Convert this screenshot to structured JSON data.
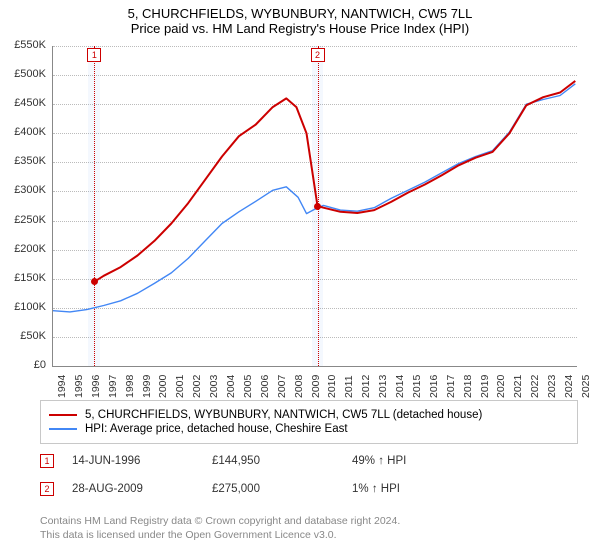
{
  "title": "5, CHURCHFIELDS, WYBUNBURY, NANTWICH, CW5 7LL",
  "subtitle": "Price paid vs. HM Land Registry's House Price Index (HPI)",
  "chart": {
    "type": "line",
    "ylim": [
      0,
      550000
    ],
    "ytick_step": 50000,
    "ylabels": [
      "£0",
      "£50K",
      "£100K",
      "£150K",
      "£200K",
      "£250K",
      "£300K",
      "£350K",
      "£400K",
      "£450K",
      "£500K",
      "£550K"
    ],
    "x_years": [
      1994,
      1995,
      1996,
      1997,
      1998,
      1999,
      2000,
      2001,
      2002,
      2003,
      2004,
      2005,
      2006,
      2007,
      2008,
      2009,
      2010,
      2011,
      2012,
      2013,
      2014,
      2015,
      2016,
      2017,
      2018,
      2019,
      2020,
      2021,
      2022,
      2023,
      2024,
      2025
    ],
    "background_color": "#ffffff",
    "grid_color": "#bbbbbb",
    "series": {
      "property": {
        "color": "#cc0000",
        "width": 2,
        "name": "5, CHURCHFIELDS, WYBUNBURY, NANTWICH, CW5 7LL (detached house)",
        "points": [
          [
            1996.45,
            144950
          ],
          [
            1997,
            155000
          ],
          [
            1998,
            170000
          ],
          [
            1999,
            190000
          ],
          [
            2000,
            215000
          ],
          [
            2001,
            245000
          ],
          [
            2002,
            280000
          ],
          [
            2003,
            320000
          ],
          [
            2004,
            360000
          ],
          [
            2005,
            395000
          ],
          [
            2006,
            415000
          ],
          [
            2007,
            445000
          ],
          [
            2007.8,
            460000
          ],
          [
            2008.4,
            445000
          ],
          [
            2009,
            400000
          ],
          [
            2009.65,
            275000
          ],
          [
            2010,
            272000
          ],
          [
            2011,
            265000
          ],
          [
            2012,
            263000
          ],
          [
            2013,
            268000
          ],
          [
            2014,
            282000
          ],
          [
            2015,
            298000
          ],
          [
            2016,
            312000
          ],
          [
            2017,
            328000
          ],
          [
            2018,
            345000
          ],
          [
            2019,
            358000
          ],
          [
            2020,
            368000
          ],
          [
            2021,
            400000
          ],
          [
            2022,
            448000
          ],
          [
            2023,
            462000
          ],
          [
            2024,
            470000
          ],
          [
            2024.9,
            490000
          ]
        ]
      },
      "hpi": {
        "color": "#4287f5",
        "width": 1.4,
        "name": "HPI: Average price, detached house, Cheshire East",
        "points": [
          [
            1994,
            95000
          ],
          [
            1995,
            93000
          ],
          [
            1996,
            97000
          ],
          [
            1997,
            104000
          ],
          [
            1998,
            112000
          ],
          [
            1999,
            125000
          ],
          [
            2000,
            142000
          ],
          [
            2001,
            160000
          ],
          [
            2002,
            185000
          ],
          [
            2003,
            215000
          ],
          [
            2004,
            245000
          ],
          [
            2005,
            265000
          ],
          [
            2006,
            283000
          ],
          [
            2007,
            302000
          ],
          [
            2007.8,
            308000
          ],
          [
            2008.5,
            290000
          ],
          [
            2009,
            262000
          ],
          [
            2009.65,
            272000
          ],
          [
            2010,
            276000
          ],
          [
            2011,
            268000
          ],
          [
            2012,
            266000
          ],
          [
            2013,
            272000
          ],
          [
            2014,
            288000
          ],
          [
            2015,
            302000
          ],
          [
            2016,
            316000
          ],
          [
            2017,
            332000
          ],
          [
            2018,
            348000
          ],
          [
            2019,
            360000
          ],
          [
            2020,
            370000
          ],
          [
            2021,
            402000
          ],
          [
            2022,
            450000
          ],
          [
            2023,
            458000
          ],
          [
            2024,
            465000
          ],
          [
            2024.9,
            485000
          ]
        ]
      }
    },
    "sale_markers": [
      {
        "n": "1",
        "year": 1996.45,
        "price": 144950
      },
      {
        "n": "2",
        "year": 2009.65,
        "price": 275000
      }
    ],
    "shade_band": {
      "width_years": 0.7
    }
  },
  "sales": [
    {
      "n": "1",
      "date": "14-JUN-1996",
      "price": "£144,950",
      "vs_hpi": "49% ↑ HPI"
    },
    {
      "n": "2",
      "date": "28-AUG-2009",
      "price": "£275,000",
      "vs_hpi": "1% ↑ HPI"
    }
  ],
  "footer": {
    "line1": "Contains HM Land Registry data © Crown copyright and database right 2024.",
    "line2": "This data is licensed under the Open Government Licence v3.0."
  }
}
